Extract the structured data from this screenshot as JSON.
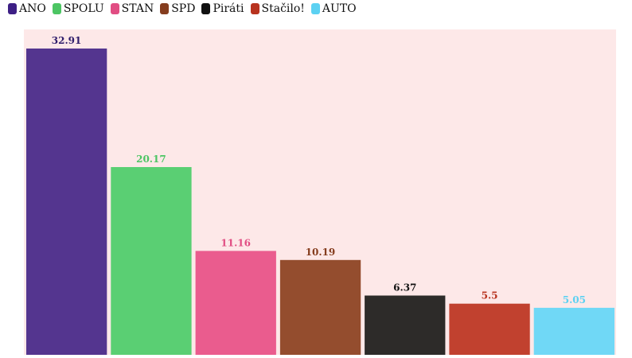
{
  "chart_data": {
    "type": "bar",
    "title": "",
    "xlabel": "",
    "ylabel": "",
    "ylim": [
      0,
      35
    ],
    "grid": false,
    "legend_position": "top-left",
    "plot_background": "#fde8e8",
    "categories": [
      "ANO",
      "SPOLU",
      "STAN",
      "SPD",
      "Piráti",
      "Stačilo!",
      "AUTO"
    ],
    "values": [
      32.91,
      20.17,
      11.16,
      10.19,
      6.37,
      5.5,
      5.05
    ],
    "value_labels": [
      "32.91",
      "20.17",
      "11.16",
      "10.19",
      "6.37",
      "5.5",
      "5.05"
    ],
    "colors": [
      "#54358f",
      "#5acf73",
      "#ea5c8e",
      "#944d2e",
      "#2d2b29",
      "#c1412f",
      "#70d8f6"
    ],
    "label_colors": [
      "#2f1d6b",
      "#4cc563",
      "#e14d83",
      "#853d1e",
      "#111111",
      "#b8331f",
      "#5cd1f2"
    ]
  },
  "legend": {
    "items": [
      {
        "label": "ANO",
        "color": "#3d1f85"
      },
      {
        "label": "SPOLU",
        "color": "#4cc563"
      },
      {
        "label": "STAN",
        "color": "#e14d83"
      },
      {
        "label": "SPD",
        "color": "#853d1e"
      },
      {
        "label": "Piráti",
        "color": "#111111"
      },
      {
        "label": "Stačilo!",
        "color": "#b8331f"
      },
      {
        "label": "AUTO",
        "color": "#5cd1f2"
      }
    ]
  }
}
